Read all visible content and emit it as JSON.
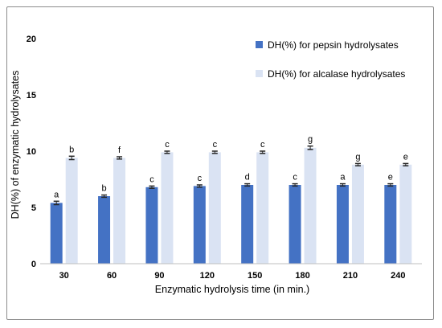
{
  "chart_data": {
    "type": "bar",
    "title": "",
    "xlabel": "Enzymatic hydrolysis time (in min.)",
    "ylabel": "DH(%) of enzymatic hydrolysates",
    "ylim": [
      0,
      20
    ],
    "yticks": [
      "0",
      "5",
      "10",
      "15",
      "20"
    ],
    "categories": [
      "30",
      "60",
      "90",
      "120",
      "150",
      "180",
      "210",
      "240"
    ],
    "grid": false,
    "legend_position": "top-right",
    "series": [
      {
        "name": "DH(%) for pepsin hydrolysates",
        "color": "#4472c4",
        "values": [
          5.4,
          6.0,
          6.8,
          6.9,
          7.0,
          7.0,
          7.0,
          7.0
        ],
        "errors": [
          0.15,
          0.1,
          0.1,
          0.1,
          0.1,
          0.1,
          0.1,
          0.1
        ],
        "letters": [
          "a",
          "b",
          "c",
          "c",
          "d",
          "c",
          "a",
          "e"
        ]
      },
      {
        "name": "DH(%) for alcalase hydrolysates",
        "color": "#dae3f3",
        "values": [
          9.4,
          9.4,
          9.9,
          9.9,
          9.9,
          10.3,
          8.8,
          8.8
        ],
        "errors": [
          0.15,
          0.1,
          0.1,
          0.1,
          0.1,
          0.15,
          0.1,
          0.1
        ],
        "letters": [
          "b",
          "f",
          "c",
          "c",
          "c",
          "g",
          "g",
          "e"
        ]
      }
    ]
  }
}
